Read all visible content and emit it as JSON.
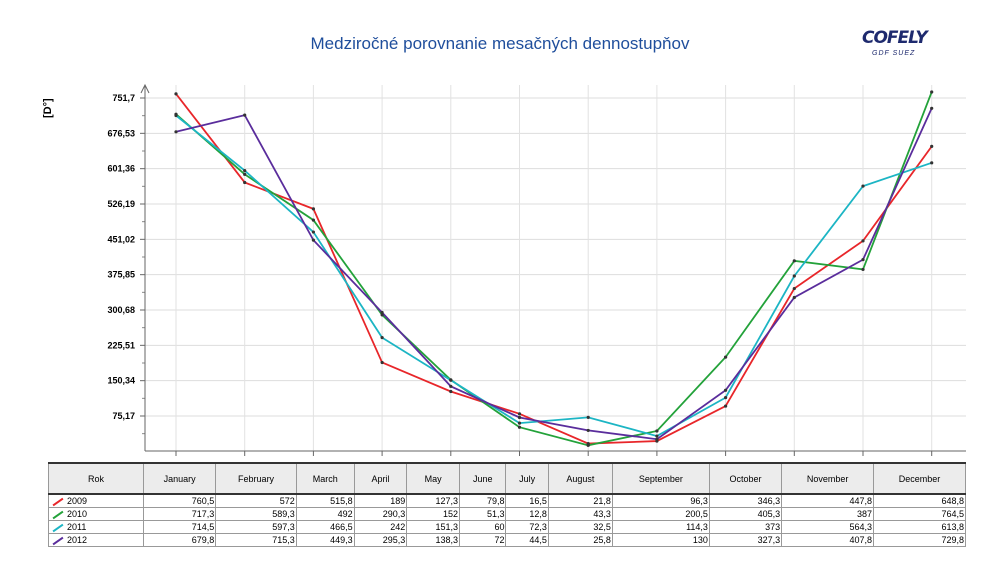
{
  "title": "Medziročné porovnanie mesačných dennostupňov",
  "logo": {
    "name": "COFELY",
    "sub": "GDF SUEZ"
  },
  "chart_data": {
    "type": "line",
    "title": "Medziročné porovnanie mesačných dennostupňov",
    "ylabel": "[D°]",
    "xlabel": "",
    "ylim": [
      0,
      751.7
    ],
    "yticks": [
      "75,17",
      "150,34",
      "225,51",
      "300,68",
      "375,85",
      "451,02",
      "526,19",
      "601,36",
      "676,53",
      "751,7"
    ],
    "ytick_values": [
      75.17,
      150.34,
      225.51,
      300.68,
      375.85,
      451.02,
      526.19,
      601.36,
      676.53,
      751.7
    ],
    "grid": true,
    "categories": [
      "January",
      "February",
      "March",
      "April",
      "May",
      "June",
      "July",
      "August",
      "September",
      "October",
      "November",
      "December"
    ],
    "series": [
      {
        "name": "2009",
        "color": "#e8262a",
        "values": [
          760.5,
          572,
          515.8,
          189,
          127.3,
          79.8,
          16.5,
          21.8,
          96.3,
          346.3,
          447.8,
          648.8
        ],
        "labels": [
          "760,5",
          "572",
          "515,8",
          "189",
          "127,3",
          "79,8",
          "16,5",
          "21,8",
          "96,3",
          "346,3",
          "447,8",
          "648,8"
        ]
      },
      {
        "name": "2010",
        "color": "#23a23a",
        "values": [
          717.3,
          589.3,
          492,
          290.3,
          152,
          51.3,
          12.8,
          43.3,
          200.5,
          405.3,
          387,
          764.5
        ],
        "labels": [
          "717,3",
          "589,3",
          "492",
          "290,3",
          "152",
          "51,3",
          "12,8",
          "43,3",
          "200,5",
          "405,3",
          "387",
          "764,5"
        ]
      },
      {
        "name": "2011",
        "color": "#1cb5c4",
        "values": [
          714.5,
          597.3,
          466.5,
          242,
          151.3,
          60,
          72.3,
          32.5,
          114.3,
          373,
          564.3,
          613.8
        ],
        "labels": [
          "714,5",
          "597,3",
          "466,5",
          "242",
          "151,3",
          "60",
          "72,3",
          "32,5",
          "114,3",
          "373",
          "564,3",
          "613,8"
        ]
      },
      {
        "name": "2012",
        "color": "#5a2d9c",
        "values": [
          679.8,
          715.3,
          449.3,
          295.3,
          138.3,
          72,
          44.5,
          25.8,
          130,
          327.3,
          407.8,
          729.8
        ],
        "labels": [
          "679,8",
          "715,3",
          "449,3",
          "295,3",
          "138,3",
          "72",
          "44,5",
          "25,8",
          "130",
          "327,3",
          "407,8",
          "729,8"
        ]
      }
    ],
    "table_header": "Rok"
  }
}
